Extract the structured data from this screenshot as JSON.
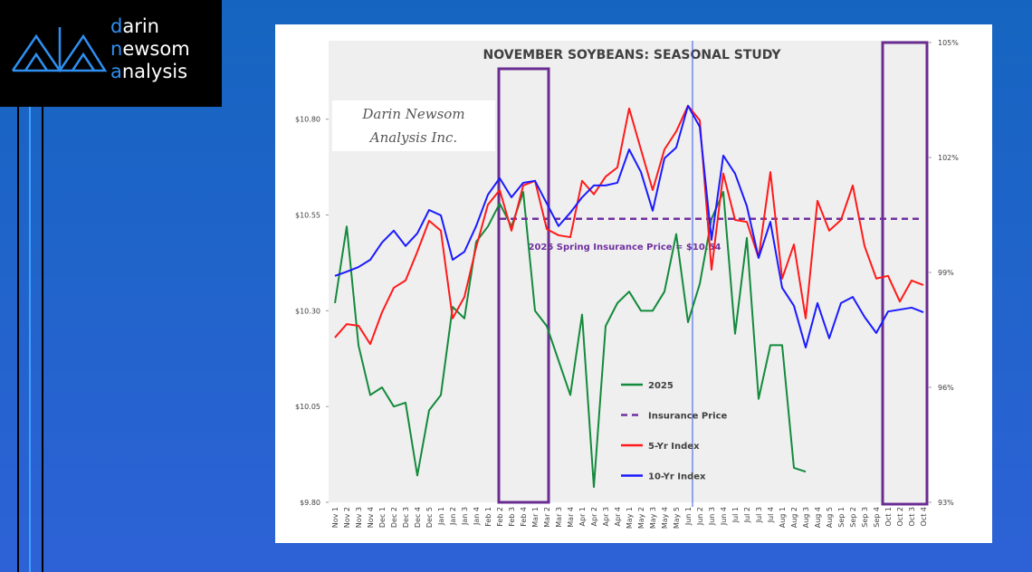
{
  "logo": {
    "lines": [
      "darin",
      "newsom",
      "analysis"
    ]
  },
  "chart_data": {
    "type": "line",
    "title": "NOVEMBER SOYBEANS: SEASONAL STUDY",
    "watermark": [
      "Darin Newsom",
      "Analysis Inc."
    ],
    "annotation": "2025 Spring Insurance Price = $10.54",
    "categories": [
      "Nov 1",
      "Nov 2",
      "Nov 3",
      "Nov 4",
      "Dec 1",
      "Dec 2",
      "Dec 3",
      "Dec 4",
      "Dec 5",
      "Jan 1",
      "Jan 2",
      "Jan 3",
      "Jan 4",
      "Feb 1",
      "Feb 2",
      "Feb 3",
      "Feb 4",
      "Mar 1",
      "Mar 2",
      "Mar 3",
      "Mar 4",
      "Apr 1",
      "Apr 2",
      "Apr 3",
      "Apr 4",
      "May 1",
      "May 2",
      "May 3",
      "May 4",
      "May 5",
      "Jun 1",
      "Jun 2",
      "Jun 3",
      "Jun 4",
      "Jul 1",
      "Jul 2",
      "Jul 3",
      "Jul 4",
      "Aug 1",
      "Aug 2",
      "Aug 3",
      "Aug 4",
      "Aug 5",
      "Sep 1",
      "Sep 2",
      "Sep 3",
      "Sep 4",
      "Oct 1",
      "Oct 2",
      "Oct 3",
      "Oct 4"
    ],
    "ylim": [
      9.8,
      11.0
    ],
    "yticks": [
      {
        "value": 9.8,
        "label": "$9.80"
      },
      {
        "value": 10.05,
        "label": "$10.05"
      },
      {
        "value": 10.3,
        "label": "$10.30"
      },
      {
        "value": 10.55,
        "label": "$10.55"
      },
      {
        "value": 10.8,
        "label": "$10.80"
      }
    ],
    "y2lim": [
      93,
      105
    ],
    "y2ticks": [
      {
        "value": 93,
        "label": "93%"
      },
      {
        "value": 96,
        "label": "96%"
      },
      {
        "value": 99,
        "label": "99%"
      },
      {
        "value": 102,
        "label": "102%"
      },
      {
        "value": 105,
        "label": "105%"
      }
    ],
    "series": [
      {
        "name": "2025",
        "color": "#138a3c",
        "values": [
          10.32,
          10.52,
          10.21,
          10.08,
          10.1,
          10.05,
          10.06,
          9.87,
          10.04,
          10.08,
          10.31,
          10.28,
          10.48,
          10.52,
          10.58,
          10.52,
          10.61,
          10.3,
          10.26,
          10.17,
          10.08,
          10.29,
          9.84,
          10.26,
          10.32,
          10.35,
          10.3,
          10.3,
          10.35,
          10.5,
          10.27,
          10.37,
          10.54,
          10.61,
          10.24,
          10.49,
          10.07,
          10.21,
          10.21,
          9.89,
          9.88,
          null,
          null,
          null,
          null,
          null,
          null,
          null,
          null,
          null,
          null
        ]
      },
      {
        "name": "Insurance Price",
        "color": "#7030a0",
        "dashed": true,
        "values": [
          null,
          null,
          null,
          null,
          null,
          null,
          null,
          null,
          null,
          null,
          null,
          null,
          null,
          null,
          10.54,
          10.54,
          10.54,
          10.54,
          10.54,
          10.54,
          10.54,
          10.54,
          10.54,
          10.54,
          10.54,
          10.54,
          10.54,
          10.54,
          10.54,
          10.54,
          10.54,
          10.54,
          10.54,
          10.54,
          10.54,
          10.54,
          10.54,
          10.54,
          10.54,
          10.54,
          10.54,
          10.54,
          10.54,
          10.54,
          10.54,
          10.54,
          10.54,
          10.54,
          10.54,
          10.54,
          10.54
        ]
      },
      {
        "name": "5-Yr Index",
        "color": "#ff1a1a",
        "axis": "y2",
        "values": [
          97.3,
          97.65,
          97.61,
          97.13,
          97.96,
          98.6,
          98.79,
          99.54,
          100.35,
          100.09,
          97.8,
          98.36,
          99.66,
          100.77,
          101.15,
          100.09,
          101.27,
          101.39,
          100.13,
          99.97,
          99.92,
          101.39,
          101.04,
          101.5,
          101.74,
          103.28,
          102.21,
          101.15,
          102.21,
          102.68,
          103.35,
          102.97,
          99.07,
          101.58,
          100.37,
          100.32,
          99.38,
          101.62,
          98.84,
          99.73,
          97.8,
          100.87,
          100.09,
          100.37,
          101.27,
          99.69,
          98.84,
          98.91,
          98.24,
          98.79,
          98.67
        ]
      },
      {
        "name": "10-Yr Index",
        "color": "#1a1aff",
        "axis": "y2",
        "values": [
          98.91,
          99.02,
          99.14,
          99.33,
          99.78,
          100.09,
          99.69,
          100.02,
          100.63,
          100.49,
          99.33,
          99.54,
          100.21,
          101.03,
          101.46,
          100.96,
          101.34,
          101.39,
          100.8,
          100.21,
          100.56,
          100.96,
          101.27,
          101.27,
          101.34,
          102.21,
          101.62,
          100.61,
          101.98,
          102.26,
          103.35,
          102.8,
          99.85,
          102.05,
          101.58,
          100.73,
          99.38,
          100.32,
          98.6,
          98.13,
          97.04,
          98.2,
          97.28,
          98.2,
          98.36,
          97.84,
          97.42,
          97.98,
          98.03,
          98.08,
          97.96
        ]
      }
    ]
  }
}
